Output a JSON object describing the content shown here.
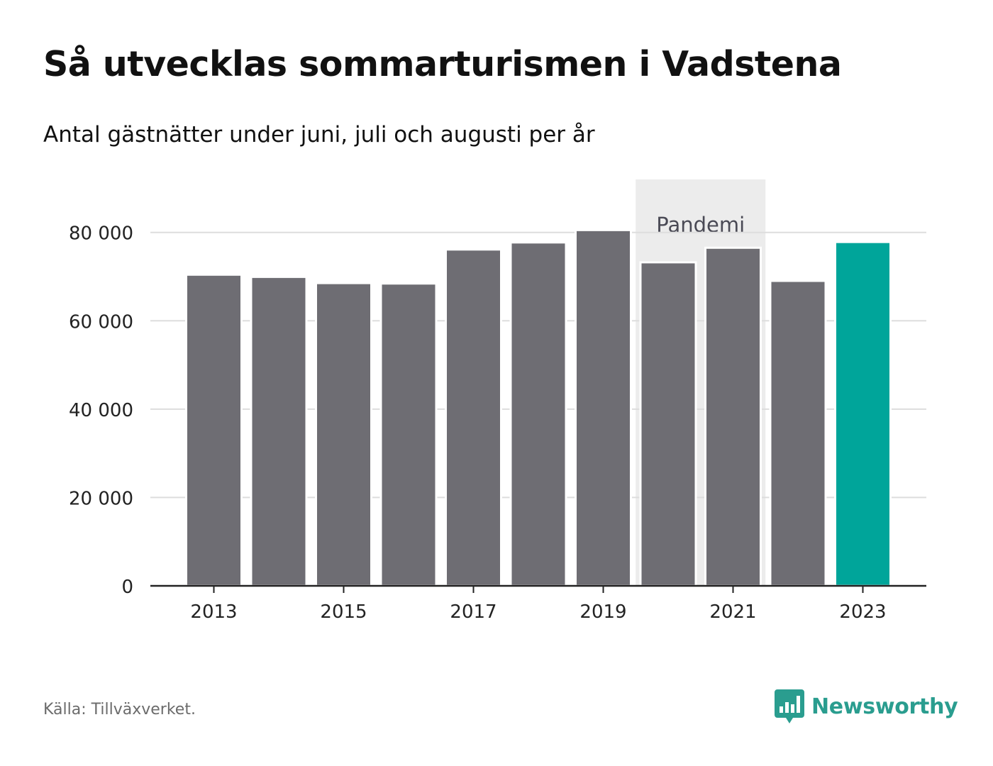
{
  "header": {
    "title": "Så utvecklas sommarturismen i Vadstena",
    "subtitle": "Antal gästnätter under juni, juli och augusti per år"
  },
  "footer": {
    "source": "Källa: Tillväxverket.",
    "brand": "Newsworthy",
    "brand_icon": "bar-chart-speech-bubble-icon"
  },
  "colors": {
    "bar": "#6e6d73",
    "highlight": "#00a59a",
    "band": "#ececec",
    "brand": "#2a9d8f"
  },
  "chart_data": {
    "type": "bar",
    "categories": [
      "2013",
      "2014",
      "2015",
      "2016",
      "2017",
      "2018",
      "2019",
      "2020",
      "2021",
      "2022",
      "2023"
    ],
    "values": [
      70200,
      69700,
      68300,
      68200,
      75900,
      77500,
      80300,
      73000,
      76300,
      68800,
      77600
    ],
    "highlight_category": "2023",
    "x_tick_labels": [
      "2013",
      "2015",
      "2017",
      "2019",
      "2021",
      "2023"
    ],
    "y_ticks": [
      0,
      20000,
      40000,
      60000,
      80000
    ],
    "y_tick_labels": [
      "0",
      "20 000",
      "40 000",
      "60 000",
      "80 000"
    ],
    "ylim": [
      0,
      92000
    ],
    "grid": true,
    "annotation": {
      "label": "Pandemi",
      "from": "2020",
      "to": "2021"
    }
  }
}
